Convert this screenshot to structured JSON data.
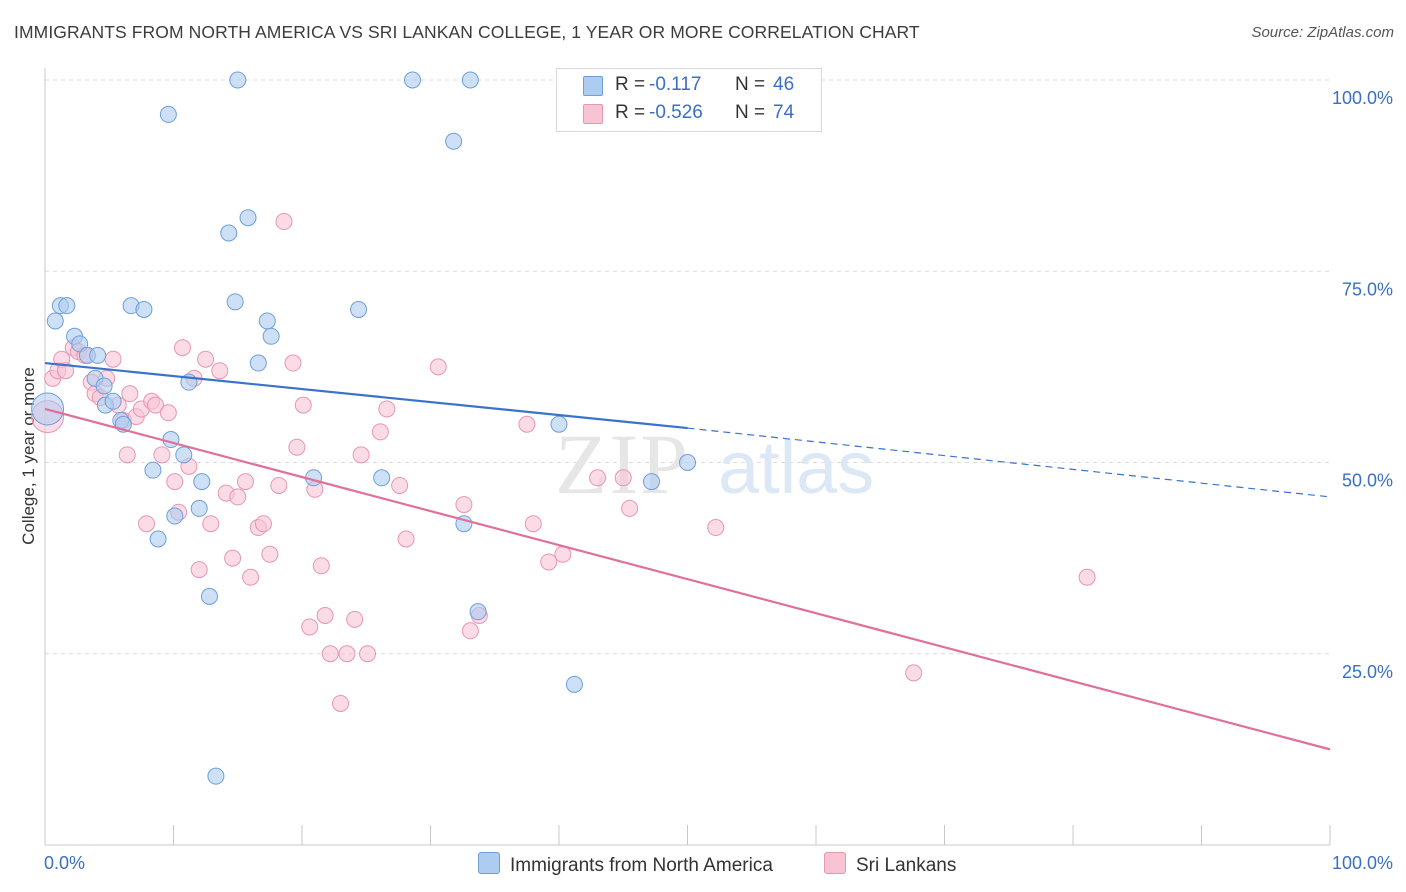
{
  "header": {
    "title": "IMMIGRANTS FROM NORTH AMERICA VS SRI LANKAN COLLEGE, 1 YEAR OR MORE CORRELATION CHART",
    "source": "Source: ZipAtlas.com"
  },
  "legend": {
    "r_label": "R =",
    "n_label": "N =",
    "series": [
      {
        "r": "-0.117",
        "n": "46"
      },
      {
        "r": "-0.526",
        "n": "74"
      }
    ]
  },
  "bottom_legend": {
    "series_a": "Immigrants from North America",
    "series_b": "Sri Lankans"
  },
  "watermark": {
    "zip": "ZIP",
    "atlas": "atlas"
  },
  "colors": {
    "blue_fill": "#aecbf0",
    "blue_stroke": "#6e9fd9",
    "blue_line": "#3a72cc",
    "pink_fill": "#f8c3d3",
    "pink_stroke": "#e896b1",
    "pink_line": "#e0709a",
    "axis_text": "#3a6fc4",
    "grid": "#dcdcdc"
  },
  "chart_data": {
    "type": "scatter",
    "title": "IMMIGRANTS FROM NORTH AMERICA VS SRI LANKAN COLLEGE, 1 YEAR OR MORE CORRELATION CHART",
    "xlabel": "",
    "ylabel": "College, 1 year or more",
    "xlim": [
      0,
      100
    ],
    "ylim": [
      0,
      100
    ],
    "x_tick_labels": [
      "0.0%",
      "100.0%"
    ],
    "y_ticks": [
      25,
      50,
      75,
      100
    ],
    "y_tick_labels": [
      "25.0%",
      "50.0%",
      "75.0%",
      "100.0%"
    ],
    "grid": true,
    "legend_position": "top-center",
    "series": [
      {
        "name": "Immigrants from North America",
        "r": -0.117,
        "n": 46,
        "points": [
          [
            0.2,
            57.0
          ],
          [
            0.8,
            68.5
          ],
          [
            1.2,
            70.5
          ],
          [
            1.7,
            70.5
          ],
          [
            2.3,
            66.5
          ],
          [
            2.7,
            65.5
          ],
          [
            3.3,
            64.0
          ],
          [
            3.9,
            61.0
          ],
          [
            4.1,
            64.0
          ],
          [
            4.6,
            60.0
          ],
          [
            4.7,
            57.5
          ],
          [
            5.3,
            58.0
          ],
          [
            5.9,
            55.5
          ],
          [
            6.1,
            55.0
          ],
          [
            6.7,
            70.5
          ],
          [
            7.7,
            70.0
          ],
          [
            8.4,
            49.0
          ],
          [
            8.8,
            40.0
          ],
          [
            9.6,
            95.5
          ],
          [
            9.8,
            53.0
          ],
          [
            10.1,
            43.0
          ],
          [
            10.8,
            51.0
          ],
          [
            11.2,
            60.5
          ],
          [
            12.0,
            44.0
          ],
          [
            12.2,
            47.5
          ],
          [
            12.8,
            32.5
          ],
          [
            13.3,
            9.0
          ],
          [
            14.3,
            80.0
          ],
          [
            14.8,
            71.0
          ],
          [
            15.0,
            100.0
          ],
          [
            15.8,
            82.0
          ],
          [
            16.6,
            63.0
          ],
          [
            17.3,
            68.5
          ],
          [
            17.6,
            66.5
          ],
          [
            20.9,
            48.0
          ],
          [
            24.4,
            70.0
          ],
          [
            26.2,
            48.0
          ],
          [
            28.6,
            100.0
          ],
          [
            31.8,
            92.0
          ],
          [
            32.6,
            42.0
          ],
          [
            33.1,
            100.0
          ],
          [
            33.7,
            30.5
          ],
          [
            40.0,
            55.0
          ],
          [
            41.2,
            21.0
          ],
          [
            47.2,
            47.5
          ],
          [
            50.0,
            50.0
          ]
        ],
        "trend": {
          "x0": 0,
          "y0": 63.0,
          "x1": 50,
          "y1": 54.5,
          "dashed_to_x": 100,
          "dashed_to_y": 45.5
        }
      },
      {
        "name": "Sri Lankans",
        "r": -0.526,
        "n": 74,
        "points": [
          [
            0.2,
            56.0
          ],
          [
            0.6,
            61.0
          ],
          [
            1.0,
            62.0
          ],
          [
            1.3,
            63.5
          ],
          [
            1.6,
            62.0
          ],
          [
            2.2,
            65.0
          ],
          [
            2.6,
            64.5
          ],
          [
            3.1,
            64.0
          ],
          [
            3.6,
            60.5
          ],
          [
            3.9,
            59.0
          ],
          [
            4.3,
            58.5
          ],
          [
            4.8,
            61.0
          ],
          [
            5.3,
            63.5
          ],
          [
            5.7,
            57.5
          ],
          [
            6.1,
            55.5
          ],
          [
            6.4,
            51.0
          ],
          [
            6.6,
            59.0
          ],
          [
            7.1,
            56.0
          ],
          [
            7.5,
            57.0
          ],
          [
            7.9,
            42.0
          ],
          [
            8.3,
            58.0
          ],
          [
            8.6,
            57.5
          ],
          [
            9.1,
            51.0
          ],
          [
            9.6,
            56.5
          ],
          [
            10.1,
            47.5
          ],
          [
            10.4,
            43.5
          ],
          [
            10.7,
            65.0
          ],
          [
            11.2,
            49.5
          ],
          [
            11.6,
            61.0
          ],
          [
            12.0,
            36.0
          ],
          [
            12.5,
            63.5
          ],
          [
            12.9,
            42.0
          ],
          [
            13.6,
            62.0
          ],
          [
            14.1,
            46.0
          ],
          [
            14.6,
            37.5
          ],
          [
            15.0,
            45.5
          ],
          [
            15.6,
            47.5
          ],
          [
            16.0,
            35.0
          ],
          [
            16.6,
            41.5
          ],
          [
            17.0,
            42.0
          ],
          [
            17.5,
            38.0
          ],
          [
            18.2,
            47.0
          ],
          [
            18.6,
            81.5
          ],
          [
            19.3,
            63.0
          ],
          [
            19.6,
            52.0
          ],
          [
            20.1,
            57.5
          ],
          [
            20.6,
            28.5
          ],
          [
            21.0,
            46.5
          ],
          [
            21.5,
            36.5
          ],
          [
            21.8,
            30.0
          ],
          [
            22.2,
            25.0
          ],
          [
            23.0,
            18.5
          ],
          [
            23.5,
            25.0
          ],
          [
            24.1,
            29.5
          ],
          [
            24.6,
            51.0
          ],
          [
            25.1,
            25.0
          ],
          [
            26.1,
            54.0
          ],
          [
            26.6,
            57.0
          ],
          [
            27.6,
            47.0
          ],
          [
            28.1,
            40.0
          ],
          [
            30.6,
            62.5
          ],
          [
            32.6,
            44.5
          ],
          [
            33.1,
            28.0
          ],
          [
            33.8,
            30.0
          ],
          [
            37.5,
            55.0
          ],
          [
            38.0,
            42.0
          ],
          [
            39.2,
            37.0
          ],
          [
            40.3,
            38.0
          ],
          [
            43.0,
            48.0
          ],
          [
            45.0,
            48.0
          ],
          [
            45.5,
            44.0
          ],
          [
            52.2,
            41.5
          ],
          [
            67.6,
            22.5
          ],
          [
            81.1,
            35.0
          ]
        ],
        "trend": {
          "x0": 0,
          "y0": 57.0,
          "x1": 100,
          "y1": 12.5
        }
      }
    ]
  }
}
